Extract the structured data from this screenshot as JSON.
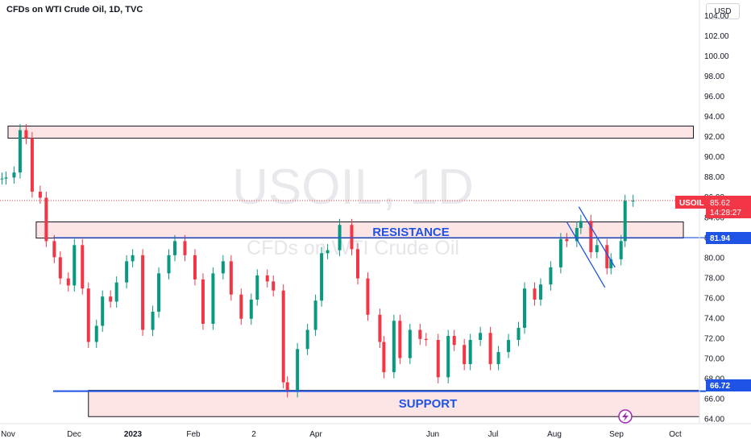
{
  "header": {
    "title": "CFDs on WTI Crude Oil, 1D, TVC",
    "currency": "USD"
  },
  "watermark": {
    "symbol": "USOIL, 1D",
    "description": "CFDs on WTI Crude Oil"
  },
  "price_axis": {
    "ticks": [
      "104.00",
      "102.00",
      "100.00",
      "98.00",
      "96.00",
      "94.00",
      "92.00",
      "90.00",
      "88.00",
      "86.00",
      "84.00",
      "82.00",
      "80.00",
      "78.00",
      "76.00",
      "74.00",
      "72.00",
      "70.00",
      "68.00",
      "66.00",
      "64.00"
    ]
  },
  "time_axis": {
    "labels": [
      "Nov",
      "Dec",
      "2023",
      "Feb",
      "2",
      "Apr",
      "Jun",
      "Jul",
      "Aug",
      "Sep",
      "Oct"
    ]
  },
  "price_tag": {
    "symbol": "USOIL",
    "price": "85.62",
    "countdown": "14:28:27",
    "color": "#f23645"
  },
  "levels": {
    "resistance_value": "81.94",
    "support_value": "66.72",
    "line_color": "#1e53e5"
  },
  "annotations": {
    "resistance": "RESISTANCE",
    "support": "SUPPORT"
  },
  "chart_data": {
    "type": "candlestick",
    "xlim": [
      "2022-10-25",
      "2023-10-08"
    ],
    "ylim": [
      63.5,
      105.5
    ],
    "colors": {
      "up": "#089981",
      "down": "#f23645",
      "zone_fill": "#fde5e5",
      "zone_border": "#131722"
    },
    "zones": [
      {
        "y0": 91.8,
        "y1": 93.0,
        "x0": "2022-10-29",
        "x1": "2023-10-05"
      },
      {
        "y0": 81.9,
        "y1": 83.5,
        "x0": "2022-11-12",
        "x1": "2023-09-30"
      },
      {
        "y0": 64.2,
        "y1": 66.8,
        "x0": "2022-12-08",
        "x1": "2023-10-08"
      }
    ],
    "horizontal_lines": [
      81.94,
      66.72
    ],
    "channel": {
      "upper": [
        {
          "x": "2023-08-09",
          "y": 85.0
        },
        {
          "x": "2023-08-27",
          "y": 79.0
        }
      ],
      "lower": [
        {
          "x": "2023-08-03",
          "y": 83.5
        },
        {
          "x": "2023-08-22",
          "y": 77.0
        }
      ]
    },
    "last_price": 85.62,
    "series": [
      {
        "name": "USOIL",
        "points": [
          {
            "x": "2022-10-26",
            "close": 87.8
          },
          {
            "x": "2022-10-28",
            "close": 87.9
          },
          {
            "x": "2022-11-01",
            "close": 88.4
          },
          {
            "x": "2022-11-04",
            "close": 92.6
          },
          {
            "x": "2022-11-07",
            "close": 91.8
          },
          {
            "x": "2022-11-10",
            "close": 86.5
          },
          {
            "x": "2022-11-14",
            "close": 85.9
          },
          {
            "x": "2022-11-17",
            "close": 81.6
          },
          {
            "x": "2022-11-21",
            "close": 80.0
          },
          {
            "x": "2022-11-24",
            "close": 77.9
          },
          {
            "x": "2022-11-28",
            "close": 77.2
          },
          {
            "x": "2022-12-01",
            "close": 81.2
          },
          {
            "x": "2022-12-05",
            "close": 76.9
          },
          {
            "x": "2022-12-08",
            "close": 71.6
          },
          {
            "x": "2022-12-12",
            "close": 73.2
          },
          {
            "x": "2022-12-15",
            "close": 76.1
          },
          {
            "x": "2022-12-19",
            "close": 75.6
          },
          {
            "x": "2022-12-22",
            "close": 77.5
          },
          {
            "x": "2022-12-27",
            "close": 79.6
          },
          {
            "x": "2022-12-30",
            "close": 80.2
          },
          {
            "x": "2023-01-04",
            "close": 72.8
          },
          {
            "x": "2023-01-09",
            "close": 74.6
          },
          {
            "x": "2023-01-12",
            "close": 78.4
          },
          {
            "x": "2023-01-17",
            "close": 80.2
          },
          {
            "x": "2023-01-20",
            "close": 81.6
          },
          {
            "x": "2023-01-25",
            "close": 80.2
          },
          {
            "x": "2023-01-30",
            "close": 77.8
          },
          {
            "x": "2023-02-03",
            "close": 73.4
          },
          {
            "x": "2023-02-08",
            "close": 78.4
          },
          {
            "x": "2023-02-13",
            "close": 79.6
          },
          {
            "x": "2023-02-17",
            "close": 76.3
          },
          {
            "x": "2023-02-22",
            "close": 73.9
          },
          {
            "x": "2023-02-27",
            "close": 75.8
          },
          {
            "x": "2023-03-02",
            "close": 78.2
          },
          {
            "x": "2023-03-07",
            "close": 77.6
          },
          {
            "x": "2023-03-10",
            "close": 76.7
          },
          {
            "x": "2023-03-15",
            "close": 67.6
          },
          {
            "x": "2023-03-17",
            "close": 66.7
          },
          {
            "x": "2023-03-22",
            "close": 70.9
          },
          {
            "x": "2023-03-27",
            "close": 72.8
          },
          {
            "x": "2023-03-31",
            "close": 75.7
          },
          {
            "x": "2023-04-03",
            "close": 80.4
          },
          {
            "x": "2023-04-06",
            "close": 80.7
          },
          {
            "x": "2023-04-12",
            "close": 83.2
          },
          {
            "x": "2023-04-18",
            "close": 80.8
          },
          {
            "x": "2023-04-21",
            "close": 77.9
          },
          {
            "x": "2023-04-26",
            "close": 74.3
          },
          {
            "x": "2023-05-02",
            "close": 71.6
          },
          {
            "x": "2023-05-04",
            "close": 68.6
          },
          {
            "x": "2023-05-09",
            "close": 73.7
          },
          {
            "x": "2023-05-12",
            "close": 70.0
          },
          {
            "x": "2023-05-17",
            "close": 72.8
          },
          {
            "x": "2023-05-22",
            "close": 71.9
          },
          {
            "x": "2023-05-25",
            "close": 71.8
          },
          {
            "x": "2023-05-31",
            "close": 68.1
          },
          {
            "x": "2023-06-05",
            "close": 72.2
          },
          {
            "x": "2023-06-08",
            "close": 71.3
          },
          {
            "x": "2023-06-13",
            "close": 69.4
          },
          {
            "x": "2023-06-16",
            "close": 71.8
          },
          {
            "x": "2023-06-21",
            "close": 72.5
          },
          {
            "x": "2023-06-26",
            "close": 69.4
          },
          {
            "x": "2023-06-30",
            "close": 70.6
          },
          {
            "x": "2023-07-05",
            "close": 71.8
          },
          {
            "x": "2023-07-10",
            "close": 73.0
          },
          {
            "x": "2023-07-13",
            "close": 76.9
          },
          {
            "x": "2023-07-18",
            "close": 75.8
          },
          {
            "x": "2023-07-21",
            "close": 77.3
          },
          {
            "x": "2023-07-26",
            "close": 79.0
          },
          {
            "x": "2023-07-31",
            "close": 81.8
          },
          {
            "x": "2023-08-03",
            "close": 81.6
          },
          {
            "x": "2023-08-08",
            "close": 82.9
          },
          {
            "x": "2023-08-10",
            "close": 83.6
          },
          {
            "x": "2023-08-15",
            "close": 80.5
          },
          {
            "x": "2023-08-18",
            "close": 81.2
          },
          {
            "x": "2023-08-23",
            "close": 78.9
          },
          {
            "x": "2023-08-25",
            "close": 79.8
          },
          {
            "x": "2023-08-30",
            "close": 81.6
          },
          {
            "x": "2023-09-01",
            "close": 85.6
          },
          {
            "x": "2023-09-05",
            "close": 85.6
          }
        ]
      }
    ]
  }
}
